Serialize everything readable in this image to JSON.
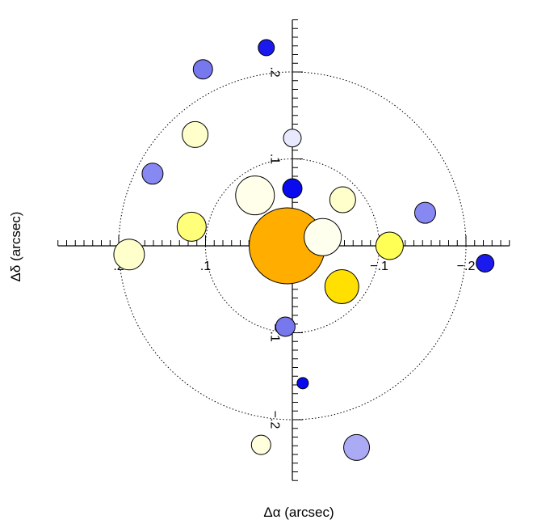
{
  "chart_data": {
    "type": "scatter",
    "title": "",
    "xlabel": "Δα (arcsec)",
    "ylabel": "Δδ (arcsec)",
    "xlim": [
      0.27,
      -0.25
    ],
    "ylim": [
      -0.27,
      0.26
    ],
    "x_ticks": [
      {
        "value": 0.2,
        "label": ".2"
      },
      {
        "value": 0.1,
        "label": ".1"
      },
      {
        "value": -0.1,
        "label": "−.1"
      },
      {
        "value": -0.2,
        "label": "−.2"
      }
    ],
    "y_ticks": [
      {
        "value": 0.2,
        "label": ".2"
      },
      {
        "value": 0.1,
        "label": ".1"
      },
      {
        "value": -0.1,
        "label": "−.1"
      },
      {
        "value": -0.2,
        "label": "−.2"
      }
    ],
    "circles": [
      0.1,
      0.2
    ],
    "grid": false,
    "points": [
      {
        "x": 0.006,
        "y": 0.0,
        "size": 47,
        "color": "#FFAE00"
      },
      {
        "x": -0.035,
        "y": 0.01,
        "size": 23,
        "color": "#FFFFEE"
      },
      {
        "x": 0.043,
        "y": 0.058,
        "size": 24,
        "color": "#FFFFEA"
      },
      {
        "x": 0.116,
        "y": 0.022,
        "size": 18,
        "color": "#FFFF7A"
      },
      {
        "x": 0.188,
        "y": -0.01,
        "size": 19,
        "color": "#FFFFCC"
      },
      {
        "x": -0.058,
        "y": 0.053,
        "size": 16,
        "color": "#FFFFCC"
      },
      {
        "x": 0.112,
        "y": 0.128,
        "size": 16,
        "color": "#FFFFCC"
      },
      {
        "x": -0.112,
        "y": 0.0,
        "size": 17,
        "color": "#FFFF55"
      },
      {
        "x": -0.057,
        "y": -0.047,
        "size": 21,
        "color": "#FFE000"
      },
      {
        "x": 0.0,
        "y": 0.066,
        "size": 12,
        "color": "#0A0AEE"
      },
      {
        "x": 0.0,
        "y": 0.124,
        "size": 11,
        "color": "#E8E8FF"
      },
      {
        "x": 0.161,
        "y": 0.083,
        "size": 13,
        "color": "#8888F2"
      },
      {
        "x": -0.153,
        "y": 0.038,
        "size": 13,
        "color": "#8888F2"
      },
      {
        "x": 0.103,
        "y": 0.203,
        "size": 12,
        "color": "#7777EE"
      },
      {
        "x": 0.03,
        "y": 0.228,
        "size": 10,
        "color": "#1A1AEE"
      },
      {
        "x": -0.222,
        "y": -0.02,
        "size": 11,
        "color": "#1A1AEE"
      },
      {
        "x": 0.008,
        "y": -0.093,
        "size": 12,
        "color": "#7777EE"
      },
      {
        "x": -0.012,
        "y": -0.158,
        "size": 7,
        "color": "#0A0AEE"
      },
      {
        "x": 0.036,
        "y": -0.229,
        "size": 12,
        "color": "#FFFFDD"
      },
      {
        "x": -0.074,
        "y": -0.232,
        "size": 16,
        "color": "#AAAAF5"
      }
    ]
  }
}
